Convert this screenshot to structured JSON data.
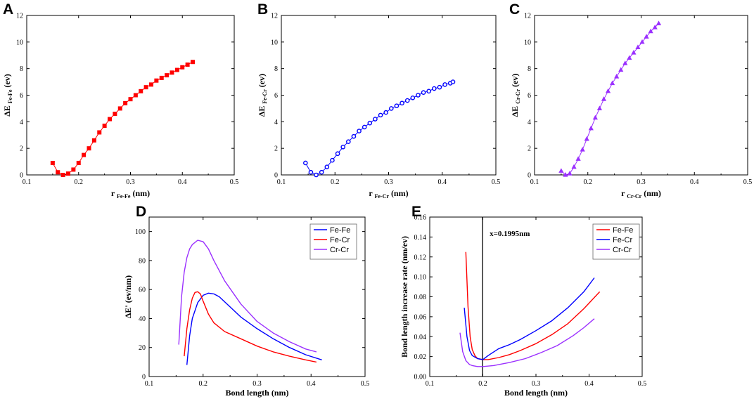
{
  "chart_data": [
    {
      "id": "A",
      "letter": "A",
      "type": "scatter",
      "marker": "square",
      "color": "#ff0000",
      "connect": true,
      "xlim": [
        0.1,
        0.5
      ],
      "ylim": [
        0,
        12
      ],
      "xticks": [
        "0.1",
        "0.2",
        "0.3",
        "0.4",
        "0.5"
      ],
      "yticks": [
        "0",
        "2",
        "4",
        "6",
        "8",
        "10",
        "12"
      ],
      "xlabel": "r",
      "xlabel_sub": "Fe-Fe",
      "xlabel_suffix": "(nm)",
      "ylabel": "ΔE",
      "ylabel_sub": "Fe-Fe",
      "ylabel_suffix": "(ev)",
      "series": [
        {
          "name": "Fe-Fe",
          "x": [
            0.15,
            0.16,
            0.17,
            0.18,
            0.19,
            0.2,
            0.21,
            0.22,
            0.23,
            0.24,
            0.25,
            0.26,
            0.27,
            0.28,
            0.29,
            0.3,
            0.31,
            0.32,
            0.33,
            0.34,
            0.35,
            0.36,
            0.37,
            0.38,
            0.39,
            0.4,
            0.41,
            0.42
          ],
          "y": [
            0.9,
            0.2,
            0.0,
            0.1,
            0.4,
            0.9,
            1.5,
            2.0,
            2.6,
            3.2,
            3.7,
            4.2,
            4.6,
            5.0,
            5.4,
            5.7,
            6.0,
            6.3,
            6.6,
            6.8,
            7.1,
            7.3,
            7.5,
            7.7,
            7.9,
            8.1,
            8.3,
            8.5
          ]
        }
      ]
    },
    {
      "id": "B",
      "letter": "B",
      "type": "scatter",
      "marker": "circle",
      "color": "#0000ff",
      "connect": true,
      "xlim": [
        0.1,
        0.5
      ],
      "ylim": [
        0,
        12
      ],
      "xticks": [
        "0.1",
        "0.2",
        "0.3",
        "0.4",
        "0.5"
      ],
      "yticks": [
        "0",
        "2",
        "4",
        "6",
        "8",
        "10",
        "12"
      ],
      "xlabel": "r",
      "xlabel_sub": "Fe-Cr",
      "xlabel_suffix": "(nm)",
      "ylabel": "ΔE",
      "ylabel_sub": "Fe-Cr",
      "ylabel_suffix": "(ev)",
      "series": [
        {
          "name": "Fe-Cr",
          "x": [
            0.145,
            0.155,
            0.165,
            0.175,
            0.185,
            0.195,
            0.205,
            0.215,
            0.225,
            0.235,
            0.245,
            0.255,
            0.265,
            0.275,
            0.285,
            0.295,
            0.305,
            0.315,
            0.325,
            0.335,
            0.345,
            0.355,
            0.365,
            0.375,
            0.385,
            0.395,
            0.405,
            0.415,
            0.42
          ],
          "y": [
            0.9,
            0.2,
            0.0,
            0.2,
            0.6,
            1.1,
            1.6,
            2.1,
            2.5,
            2.9,
            3.3,
            3.6,
            3.9,
            4.2,
            4.5,
            4.7,
            5.0,
            5.2,
            5.4,
            5.6,
            5.8,
            6.0,
            6.2,
            6.3,
            6.5,
            6.6,
            6.8,
            6.9,
            7.0
          ]
        }
      ]
    },
    {
      "id": "C",
      "letter": "C",
      "type": "scatter",
      "marker": "triangle",
      "color": "#9b30ff",
      "connect": true,
      "xlim": [
        0.1,
        0.5
      ],
      "ylim": [
        0,
        12
      ],
      "xticks": [
        "0.1",
        "0.2",
        "0.3",
        "0.4",
        "0.5"
      ],
      "yticks": [
        "0",
        "2",
        "4",
        "6",
        "8",
        "10",
        "12"
      ],
      "xlabel": "r",
      "xlabel_sub": "Cr-Cr",
      "xlabel_suffix": "(nm)",
      "ylabel": "ΔE",
      "ylabel_sub": "Cr-Cr",
      "ylabel_suffix": "(ev)",
      "series": [
        {
          "name": "Cr-Cr",
          "x": [
            0.15,
            0.158,
            0.166,
            0.174,
            0.182,
            0.19,
            0.198,
            0.206,
            0.214,
            0.222,
            0.23,
            0.238,
            0.246,
            0.254,
            0.262,
            0.27,
            0.278,
            0.286,
            0.294,
            0.302,
            0.31,
            0.318,
            0.326,
            0.333
          ],
          "y": [
            0.3,
            0.0,
            0.1,
            0.6,
            1.2,
            1.9,
            2.7,
            3.5,
            4.3,
            5.0,
            5.7,
            6.3,
            6.9,
            7.4,
            7.9,
            8.4,
            8.8,
            9.2,
            9.6,
            10.0,
            10.4,
            10.8,
            11.1,
            11.4
          ]
        }
      ]
    },
    {
      "id": "D",
      "letter": "D",
      "type": "line",
      "xlim": [
        0.1,
        0.5
      ],
      "ylim": [
        0,
        110
      ],
      "xticks": [
        "0.1",
        "0.2",
        "0.3",
        "0.4",
        "0.5"
      ],
      "yticks": [
        "0",
        "20",
        "40",
        "60",
        "80",
        "100"
      ],
      "xlabel": "Bond length (nm)",
      "ylabel": "ΔE' (ev/nm)",
      "legend": "top-right",
      "series": [
        {
          "name": "Fe-Fe",
          "color": "#0000ff",
          "x": [
            0.17,
            0.175,
            0.18,
            0.19,
            0.2,
            0.21,
            0.22,
            0.23,
            0.25,
            0.27,
            0.3,
            0.33,
            0.36,
            0.39,
            0.42
          ],
          "y": [
            8,
            28,
            40,
            51,
            56,
            57.5,
            57,
            55,
            48,
            41,
            33,
            26,
            20,
            15,
            11.5
          ]
        },
        {
          "name": "Fe-Cr",
          "color": "#ff0000",
          "x": [
            0.165,
            0.17,
            0.175,
            0.18,
            0.185,
            0.19,
            0.195,
            0.2,
            0.21,
            0.22,
            0.24,
            0.27,
            0.3,
            0.33,
            0.36,
            0.39,
            0.41
          ],
          "y": [
            14,
            33,
            46,
            54,
            58,
            58.5,
            57,
            52,
            43,
            37,
            31,
            26,
            21,
            17,
            14,
            11.5,
            10
          ]
        },
        {
          "name": "Cr-Cr",
          "color": "#9b30ff",
          "x": [
            0.155,
            0.16,
            0.165,
            0.17,
            0.175,
            0.18,
            0.19,
            0.2,
            0.21,
            0.22,
            0.24,
            0.27,
            0.3,
            0.33,
            0.36,
            0.39,
            0.41
          ],
          "y": [
            22,
            55,
            72,
            82,
            88,
            91,
            94,
            93,
            88,
            80,
            66,
            50,
            38,
            30,
            24,
            19,
            17
          ]
        }
      ]
    },
    {
      "id": "E",
      "letter": "E",
      "type": "line",
      "xlim": [
        0.1,
        0.5
      ],
      "ylim": [
        0,
        0.16
      ],
      "xticks": [
        "0.1",
        "0.2",
        "0.3",
        "0.4",
        "0.5"
      ],
      "yticks": [
        "0.00",
        "0.02",
        "0.04",
        "0.06",
        "0.08",
        "0.10",
        "0.12",
        "0.14",
        "0.16"
      ],
      "xlabel": "Bond length (nm)",
      "ylabel": "Bond length increase rate (nm/ev)",
      "legend": "top-right",
      "annotation": {
        "text": "x=0.1995nm",
        "x": 0.1995
      },
      "series": [
        {
          "name": "Fe-Fe",
          "color": "#ff0000",
          "x": [
            0.168,
            0.172,
            0.176,
            0.18,
            0.185,
            0.19,
            0.2,
            0.21,
            0.23,
            0.25,
            0.27,
            0.3,
            0.33,
            0.36,
            0.39,
            0.42
          ],
          "y": [
            0.125,
            0.07,
            0.04,
            0.027,
            0.021,
            0.018,
            0.017,
            0.017,
            0.019,
            0.022,
            0.026,
            0.033,
            0.042,
            0.053,
            0.068,
            0.085
          ]
        },
        {
          "name": "Fe-Cr",
          "color": "#0000ff",
          "x": [
            0.165,
            0.17,
            0.175,
            0.18,
            0.19,
            0.2,
            0.21,
            0.23,
            0.25,
            0.27,
            0.3,
            0.33,
            0.36,
            0.39,
            0.41
          ],
          "y": [
            0.069,
            0.04,
            0.026,
            0.021,
            0.018,
            0.017,
            0.021,
            0.028,
            0.032,
            0.037,
            0.046,
            0.056,
            0.069,
            0.085,
            0.099
          ]
        },
        {
          "name": "Cr-Cr",
          "color": "#9b30ff",
          "x": [
            0.157,
            0.162,
            0.168,
            0.175,
            0.18,
            0.19,
            0.2,
            0.22,
            0.25,
            0.28,
            0.31,
            0.34,
            0.37,
            0.39,
            0.41
          ],
          "y": [
            0.044,
            0.025,
            0.016,
            0.012,
            0.011,
            0.01,
            0.01,
            0.011,
            0.014,
            0.018,
            0.024,
            0.031,
            0.041,
            0.049,
            0.058
          ]
        }
      ]
    }
  ]
}
